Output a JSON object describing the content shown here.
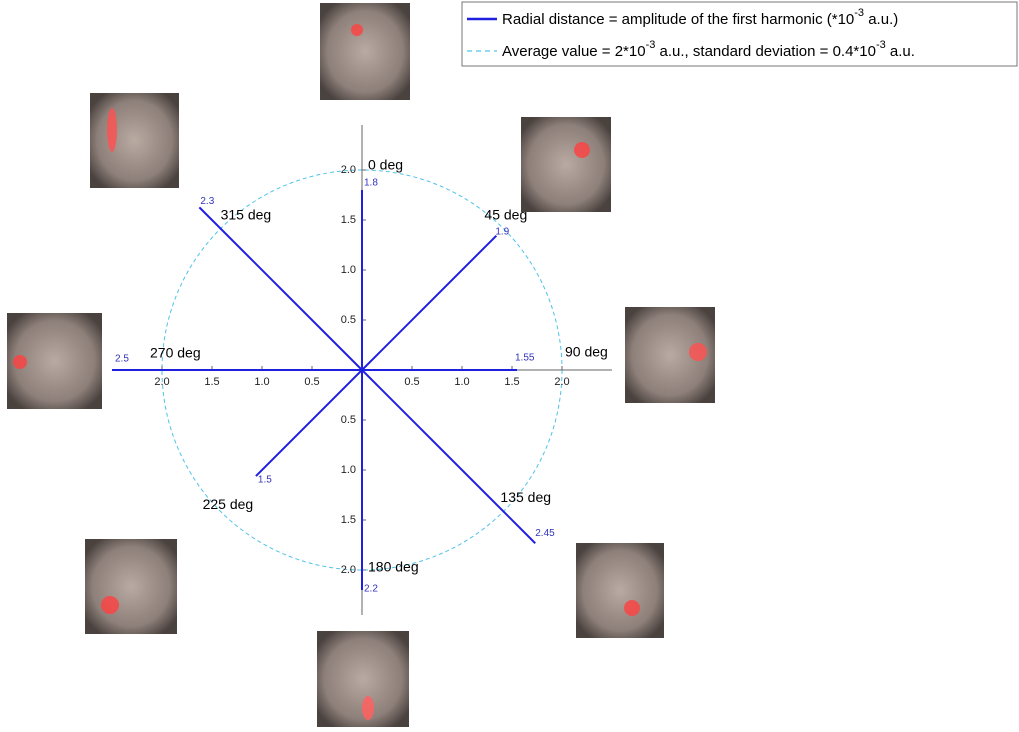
{
  "chart_data": {
    "type": "polar-spokes",
    "angles": [
      {
        "value": 0,
        "label": "0 deg"
      },
      {
        "value": 45,
        "label": "45 deg"
      },
      {
        "value": 90,
        "label": "90 deg"
      },
      {
        "value": 135,
        "label": "135 deg"
      },
      {
        "value": 180,
        "label": "180 deg"
      },
      {
        "value": 225,
        "label": "225 deg"
      },
      {
        "value": 270,
        "label": "270 deg"
      },
      {
        "value": 315,
        "label": "315 deg"
      }
    ],
    "series": [
      {
        "name": [
          "Radial distance = amplitude of the first harmonic (*10",
          "-3",
          " a.u.)"
        ],
        "color": "#1f1fe0",
        "values": [
          1.8,
          1.9,
          1.55,
          2.45,
          2.2,
          1.5,
          2.5,
          2.3
        ]
      }
    ],
    "average": {
      "name": [
        "Average value = 2*10",
        "-3",
        " a.u., standard deviation = 0.4*10",
        "-3",
        " a.u."
      ],
      "value": 2,
      "color": "#4fc3e8"
    },
    "xlim": [
      -2.5,
      2.5
    ],
    "ylim": [
      -2.45,
      2.45
    ],
    "xticks": [
      {
        "value": -2,
        "label": "2.0"
      },
      {
        "value": -1.5,
        "label": "1.5"
      },
      {
        "value": -1,
        "label": "1.0"
      },
      {
        "value": -0.5,
        "label": "0.5"
      },
      {
        "value": 0.5,
        "label": "0.5"
      },
      {
        "value": 1,
        "label": "1.0"
      },
      {
        "value": 1.5,
        "label": "1.5"
      },
      {
        "value": 2,
        "label": "2.0"
      }
    ],
    "yticks": [
      {
        "value": -2,
        "label": "2.0"
      },
      {
        "value": -1.5,
        "label": "1.5"
      },
      {
        "value": -1,
        "label": "1.0"
      },
      {
        "value": -0.5,
        "label": "0.5"
      },
      {
        "value": 0.5,
        "label": "0.5"
      },
      {
        "value": 1,
        "label": "1.0"
      },
      {
        "value": 1.5,
        "label": "1.5"
      },
      {
        "value": 2,
        "label": "2.0"
      }
    ]
  }
}
